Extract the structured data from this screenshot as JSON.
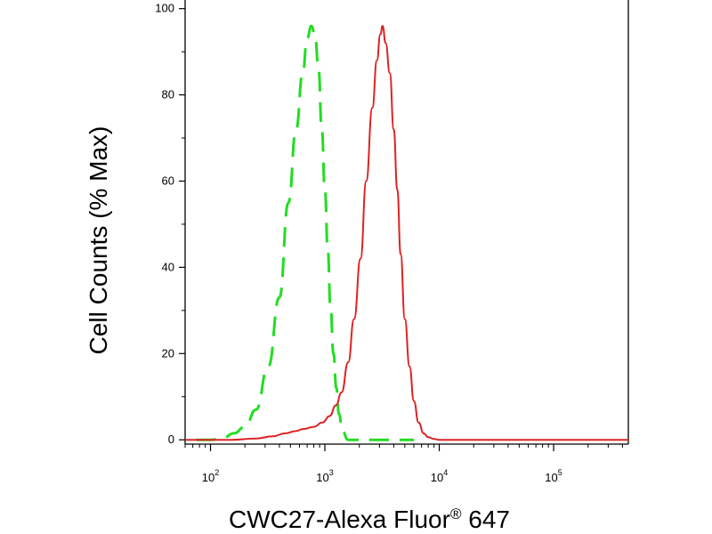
{
  "chart_data": {
    "type": "line",
    "title": "",
    "xlabel": "CWC27-Alexa Fluor",
    "xlabel_mark": "®",
    "xlabel_suffix": " 647",
    "ylabel": "Cell Counts (% Max)",
    "x_scale": "log",
    "xlim": [
      60,
      450000
    ],
    "ylim": [
      -1,
      102
    ],
    "x_ticks": [
      {
        "value": 100,
        "base": "10",
        "exp": "2"
      },
      {
        "value": 1000,
        "base": "10",
        "exp": "3"
      },
      {
        "value": 10000,
        "base": "10",
        "exp": "4"
      },
      {
        "value": 100000,
        "base": "10",
        "exp": "5"
      }
    ],
    "y_ticks": [
      {
        "value": 0,
        "label": "0"
      },
      {
        "value": 20,
        "label": "20"
      },
      {
        "value": 40,
        "label": "40"
      },
      {
        "value": 60,
        "label": "60"
      },
      {
        "value": 80,
        "label": "80"
      },
      {
        "value": 100,
        "label": "100"
      }
    ],
    "grid": false,
    "legend": "none",
    "series": [
      {
        "color": "#22dd22",
        "style": "dashed",
        "x": [
          75,
          100,
          130,
          160,
          200,
          250,
          320,
          400,
          480,
          560,
          640,
          700,
          760,
          820,
          880,
          940,
          1000,
          1060,
          1120,
          1190,
          1260,
          1330,
          1420,
          1600,
          3000,
          6000
        ],
        "y": [
          0,
          0,
          0.5,
          1.5,
          3,
          7,
          17,
          33,
          55,
          72,
          85,
          93,
          96,
          94,
          86,
          72,
          58,
          44,
          31,
          20,
          12,
          6,
          2,
          0,
          0,
          0
        ]
      },
      {
        "color": "#dd2222",
        "style": "solid",
        "x": [
          60,
          150,
          250,
          350,
          450,
          550,
          650,
          800,
          950,
          1100,
          1250,
          1400,
          1600,
          1800,
          2050,
          2300,
          2600,
          2850,
          3050,
          3200,
          3400,
          3700,
          4000,
          4300,
          4600,
          5000,
          5500,
          6000,
          6600,
          7300,
          8000,
          9000,
          10000,
          12000,
          20000,
          100000,
          450000
        ],
        "y": [
          0,
          0,
          0.3,
          0.8,
          1.5,
          2,
          2.5,
          3,
          4,
          5.5,
          8,
          11,
          18,
          28,
          42,
          60,
          77,
          88,
          94,
          96,
          92,
          85,
          72,
          58,
          43,
          28,
          17,
          9,
          4,
          1.5,
          0.6,
          0.2,
          0,
          0,
          0,
          0,
          0
        ]
      }
    ]
  }
}
